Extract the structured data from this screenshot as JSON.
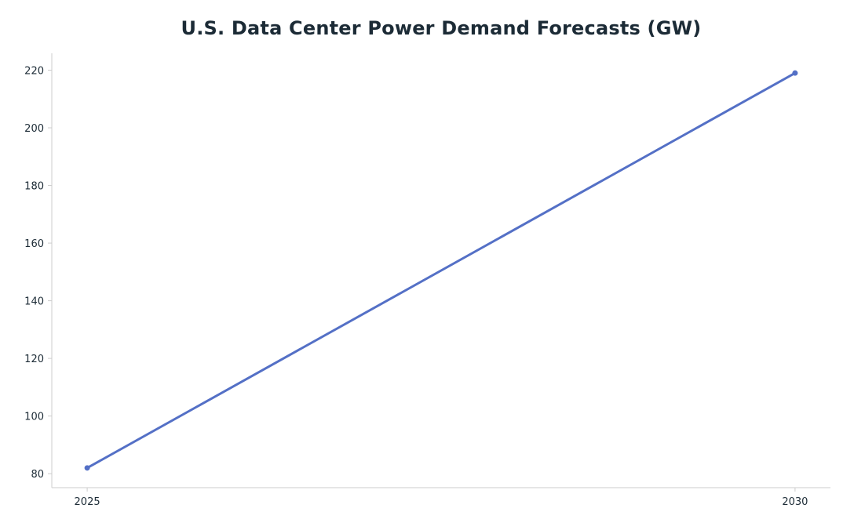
{
  "chart_data": {
    "type": "line",
    "title": "U.S. Data Center Power Demand Forecasts (GW)",
    "xlabel": "",
    "ylabel": "",
    "x": [
      2025,
      2030
    ],
    "x_ticks": [
      "2025",
      "2030"
    ],
    "series": [
      {
        "values": [
          82,
          219
        ],
        "color": "#5470c6"
      }
    ],
    "y_ticks": [
      80,
      100,
      120,
      140,
      160,
      180,
      200,
      220
    ],
    "ylim": [
      75.15,
      225.85
    ],
    "xlim": [
      2024.75,
      2030.25
    ],
    "grid": false,
    "legend": "none",
    "axis_color": "#cccccc",
    "text_color": "#1c2b36"
  }
}
